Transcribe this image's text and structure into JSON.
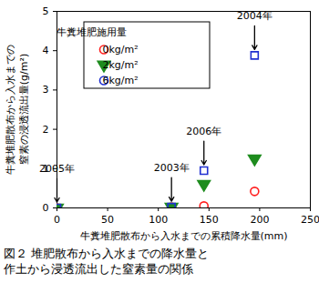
{
  "chart_data": {
    "type": "scatter",
    "y_label": [
      "牛糞堆肥散布から入水までの",
      "窒素の浸透流出量(g/m²)"
    ],
    "x_label": "牛糞堆肥散布から入水までの累積降水量(mm)",
    "caption": [
      "図２ 堆肥散布から入水までの降水量と",
      "作土から浸透流出した窒素量の関係"
    ],
    "legend_title": "牛糞堆肥施用量",
    "legend": "top-left",
    "x": [
      0,
      113,
      145,
      195
    ],
    "series": [
      {
        "name": "0kg/m²",
        "color": "#ff2020",
        "marker": "circle-open",
        "values": [
          0,
          0.02,
          0.05,
          0.42
        ]
      },
      {
        "name": "2kg/m²",
        "color": "#1e8c1e",
        "marker": "triangle-down",
        "values": [
          0,
          0.02,
          0.6,
          1.25
        ]
      },
      {
        "name": "6kg/m²",
        "color": "#2030d0",
        "marker": "square-open",
        "values": [
          0,
          0.02,
          0.95,
          3.88
        ]
      }
    ],
    "annotations": [
      {
        "text": "2005年",
        "x": 0
      },
      {
        "text": "2003年",
        "x": 113
      },
      {
        "text": "2006年",
        "x": 145
      },
      {
        "text": "2004年",
        "x": 195
      }
    ],
    "xlim": [
      0,
      250
    ],
    "xticks": [
      0,
      50,
      100,
      150,
      200,
      250
    ],
    "ylim": [
      0,
      5
    ],
    "yticks": [
      0,
      1,
      2,
      3,
      4,
      5
    ]
  }
}
